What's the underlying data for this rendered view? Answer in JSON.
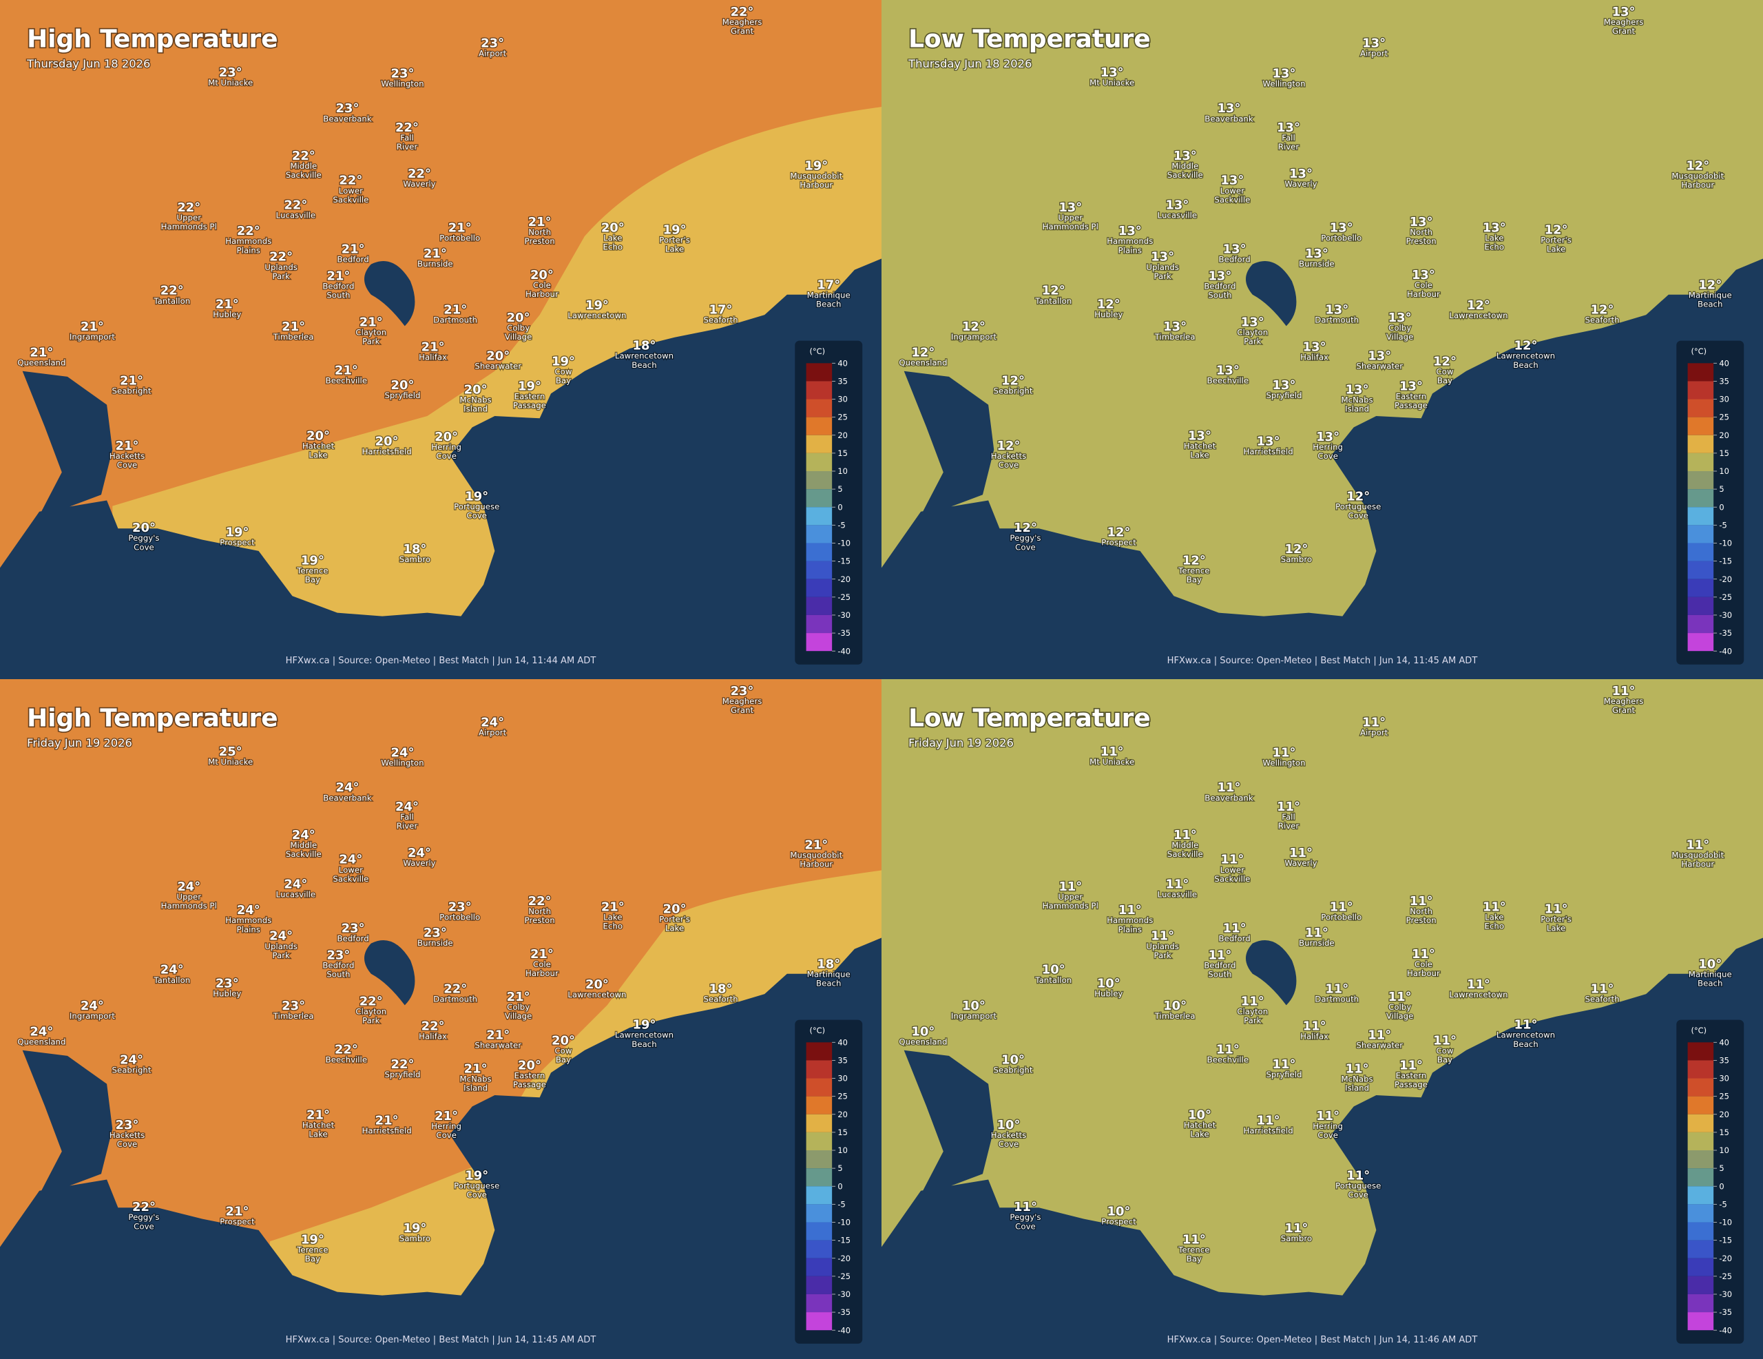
{
  "places": [
    {
      "name": [
        "Meaghers",
        "Grant"
      ]
    },
    {
      "name": [
        "Airport"
      ]
    },
    {
      "name": [
        "Mt Uniacke"
      ]
    },
    {
      "name": [
        "Wellington"
      ]
    },
    {
      "name": [
        "Beaverbank"
      ]
    },
    {
      "name": [
        "Fall",
        "River"
      ]
    },
    {
      "name": [
        "Middle",
        "Sackville"
      ]
    },
    {
      "name": [
        "Waverly"
      ]
    },
    {
      "name": [
        "Lower",
        "Sackville"
      ]
    },
    {
      "name": [
        "Lucasville"
      ]
    },
    {
      "name": [
        "Upper",
        "Hammonds Pl"
      ]
    },
    {
      "name": [
        "Hammonds",
        "Plains"
      ]
    },
    {
      "name": [
        "Uplands",
        "Park"
      ]
    },
    {
      "name": [
        "Portobello"
      ]
    },
    {
      "name": [
        "North",
        "Preston"
      ]
    },
    {
      "name": [
        "Bedford"
      ]
    },
    {
      "name": [
        "Burnside"
      ]
    },
    {
      "name": [
        "Bedford",
        "South"
      ]
    },
    {
      "name": [
        "Cole",
        "Harbour"
      ]
    },
    {
      "name": [
        "Lake",
        "Echo"
      ]
    },
    {
      "name": [
        "Porter's",
        "Lake"
      ]
    },
    {
      "name": [
        "Musquodobit",
        "Harbour"
      ]
    },
    {
      "name": [
        "Tantallon"
      ]
    },
    {
      "name": [
        "Hubley"
      ]
    },
    {
      "name": [
        "Dartmouth"
      ]
    },
    {
      "name": [
        "Colby",
        "Village"
      ]
    },
    {
      "name": [
        "Lawrencetown"
      ]
    },
    {
      "name": [
        "Martinique",
        "Beach"
      ]
    },
    {
      "name": [
        "Seaforth"
      ]
    },
    {
      "name": [
        "Ingramport"
      ]
    },
    {
      "name": [
        "Timberlea"
      ]
    },
    {
      "name": [
        "Clayton",
        "Park"
      ]
    },
    {
      "name": [
        "Halifax"
      ]
    },
    {
      "name": [
        "Shearwater"
      ]
    },
    {
      "name": [
        "Lawrencetown",
        "Beach"
      ]
    },
    {
      "name": [
        "Cow",
        "Bay"
      ]
    },
    {
      "name": [
        "Queensland"
      ]
    },
    {
      "name": [
        "Beechville"
      ]
    },
    {
      "name": [
        "Seabright"
      ]
    },
    {
      "name": [
        "Spryfield"
      ]
    },
    {
      "name": [
        "McNabs",
        "Island"
      ]
    },
    {
      "name": [
        "Eastern",
        "Passage"
      ]
    },
    {
      "name": [
        "Hatchet",
        "Lake"
      ]
    },
    {
      "name": [
        "Harrietsfield"
      ]
    },
    {
      "name": [
        "Herring",
        "Cove"
      ]
    },
    {
      "name": [
        "Hacketts",
        "Cove"
      ]
    },
    {
      "name": [
        "Portuguese",
        "Cove"
      ]
    },
    {
      "name": [
        "Peggy's",
        "Cove"
      ]
    },
    {
      "name": [
        "Prospect"
      ]
    },
    {
      "name": [
        "Sambro"
      ]
    },
    {
      "name": [
        "Terence",
        "Bay"
      ]
    }
  ],
  "legend": {
    "title": "(°C)",
    "ticks": [
      40,
      35,
      30,
      25,
      20,
      15,
      10,
      5,
      0,
      -5,
      -10,
      -15,
      -20,
      -25,
      -30,
      -35,
      -40
    ],
    "colors": [
      "#7a1010",
      "#b8342a",
      "#cf4f2a",
      "#e0782a",
      "#e2b145",
      "#b5b35a",
      "#8c9a6c",
      "#66998c",
      "#5ab0e0",
      "#4a90dc",
      "#3b6fd2",
      "#3a55c8",
      "#3a3cb8",
      "#4a2ca8",
      "#7a34bc",
      "#c444dc"
    ]
  },
  "panels": [
    {
      "title": "High Temperature",
      "date": "Thursday Jun 18 2026",
      "footer": "HFXwx.ca | Source: Open-Meteo | Best Match | Jun 14, 11:44 AM ADT",
      "temps": [
        "22°",
        "23°",
        "23°",
        "23°",
        "23°",
        "22°",
        "22°",
        "22°",
        "22°",
        "22°",
        "22°",
        "22°",
        "22°",
        "21°",
        "21°",
        "21°",
        "21°",
        "21°",
        "20°",
        "20°",
        "19°",
        "19°",
        "22°",
        "21°",
        "21°",
        "20°",
        "19°",
        "17°",
        "17°",
        "21°",
        "21°",
        "21°",
        "21°",
        "20°",
        "18°",
        "19°",
        "21°",
        "21°",
        "21°",
        "20°",
        "20°",
        "19°",
        "20°",
        "20°",
        "20°",
        "21°",
        "19°",
        "20°",
        "19°",
        "18°",
        "19°"
      ]
    },
    {
      "title": "Low Temperature",
      "date": "Thursday Jun 18 2026",
      "footer": "HFXwx.ca | Source: Open-Meteo | Best Match | Jun 14, 11:45 AM ADT",
      "temps": [
        "13°",
        "13°",
        "13°",
        "13°",
        "13°",
        "13°",
        "13°",
        "13°",
        "13°",
        "13°",
        "13°",
        "13°",
        "13°",
        "13°",
        "13°",
        "13°",
        "13°",
        "13°",
        "13°",
        "13°",
        "12°",
        "12°",
        "12°",
        "12°",
        "13°",
        "13°",
        "12°",
        "12°",
        "12°",
        "12°",
        "13°",
        "13°",
        "13°",
        "13°",
        "12°",
        "12°",
        "12°",
        "13°",
        "12°",
        "13°",
        "13°",
        "13°",
        "13°",
        "13°",
        "13°",
        "12°",
        "12°",
        "12°",
        "12°",
        "12°",
        "12°"
      ]
    },
    {
      "title": "High Temperature",
      "date": "Friday Jun 19 2026",
      "footer": "HFXwx.ca | Source: Open-Meteo | Best Match | Jun 14, 11:45 AM ADT",
      "temps": [
        "23°",
        "24°",
        "25°",
        "24°",
        "24°",
        "24°",
        "24°",
        "24°",
        "24°",
        "24°",
        "24°",
        "24°",
        "24°",
        "23°",
        "22°",
        "23°",
        "23°",
        "23°",
        "21°",
        "21°",
        "20°",
        "21°",
        "24°",
        "23°",
        "22°",
        "21°",
        "20°",
        "18°",
        "18°",
        "24°",
        "23°",
        "22°",
        "22°",
        "21°",
        "19°",
        "20°",
        "24°",
        "22°",
        "24°",
        "22°",
        "21°",
        "20°",
        "21°",
        "21°",
        "21°",
        "23°",
        "19°",
        "22°",
        "21°",
        "19°",
        "19°"
      ]
    },
    {
      "title": "Low Temperature",
      "date": "Friday Jun 19 2026",
      "footer": "HFXwx.ca | Source: Open-Meteo | Best Match | Jun 14, 11:46 AM ADT",
      "temps": [
        "11°",
        "11°",
        "11°",
        "11°",
        "11°",
        "11°",
        "11°",
        "11°",
        "11°",
        "11°",
        "11°",
        "11°",
        "11°",
        "11°",
        "11°",
        "11°",
        "11°",
        "11°",
        "11°",
        "11°",
        "11°",
        "11°",
        "10°",
        "10°",
        "11°",
        "11°",
        "11°",
        "10°",
        "11°",
        "10°",
        "10°",
        "11°",
        "11°",
        "11°",
        "11°",
        "11°",
        "10°",
        "11°",
        "10°",
        "11°",
        "11°",
        "11°",
        "10°",
        "11°",
        "11°",
        "10°",
        "11°",
        "11°",
        "10°",
        "11°",
        "11°"
      ]
    }
  ]
}
